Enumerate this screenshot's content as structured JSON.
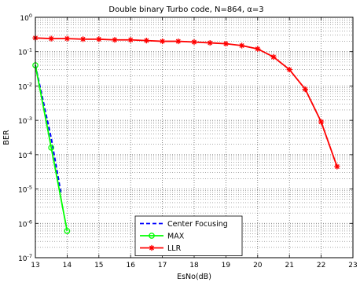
{
  "chart_data": {
    "type": "line",
    "title": "Double binary Turbo code, N=864, α=3",
    "xlabel": "EsNo(dB)",
    "ylabel": "BER",
    "xlim": [
      13,
      23
    ],
    "ylim_exponents": [
      -7,
      0
    ],
    "yscale": "log",
    "grid": true,
    "legend_position": "bottom-center",
    "x_ticks": [
      13,
      14,
      15,
      16,
      17,
      18,
      19,
      20,
      21,
      22,
      23
    ],
    "y_ticks": [
      {
        "base": "10",
        "exp": "0"
      },
      {
        "base": "10",
        "exp": "-1"
      },
      {
        "base": "10",
        "exp": "-2"
      },
      {
        "base": "10",
        "exp": "-3"
      },
      {
        "base": "10",
        "exp": "-4"
      },
      {
        "base": "10",
        "exp": "-5"
      },
      {
        "base": "10",
        "exp": "-6"
      },
      {
        "base": "10",
        "exp": "-7"
      }
    ],
    "series": [
      {
        "name": "Center Focusing",
        "color": "#0000ff",
        "line_style": "dashed",
        "marker": "none",
        "x": [
          13,
          13.5,
          13.8
        ],
        "y": [
          0.04,
          0.0003,
          8e-06
        ]
      },
      {
        "name": "MAX",
        "color": "#00ff00",
        "line_style": "solid",
        "marker": "circle",
        "x": [
          13,
          13.5,
          14
        ],
        "y": [
          0.04,
          0.00016,
          6e-07
        ]
      },
      {
        "name": "LLR",
        "color": "#ff0000",
        "line_style": "solid",
        "marker": "star",
        "x": [
          13,
          13.5,
          14,
          14.5,
          15,
          15.5,
          16,
          16.5,
          17,
          17.5,
          18,
          18.5,
          19,
          19.5,
          20,
          20.5,
          21,
          21.5,
          22,
          22.5
        ],
        "y": [
          0.25,
          0.24,
          0.24,
          0.23,
          0.23,
          0.22,
          0.22,
          0.21,
          0.2,
          0.2,
          0.19,
          0.18,
          0.17,
          0.15,
          0.12,
          0.07,
          0.03,
          0.008,
          0.0009,
          4.5e-05
        ]
      }
    ]
  }
}
